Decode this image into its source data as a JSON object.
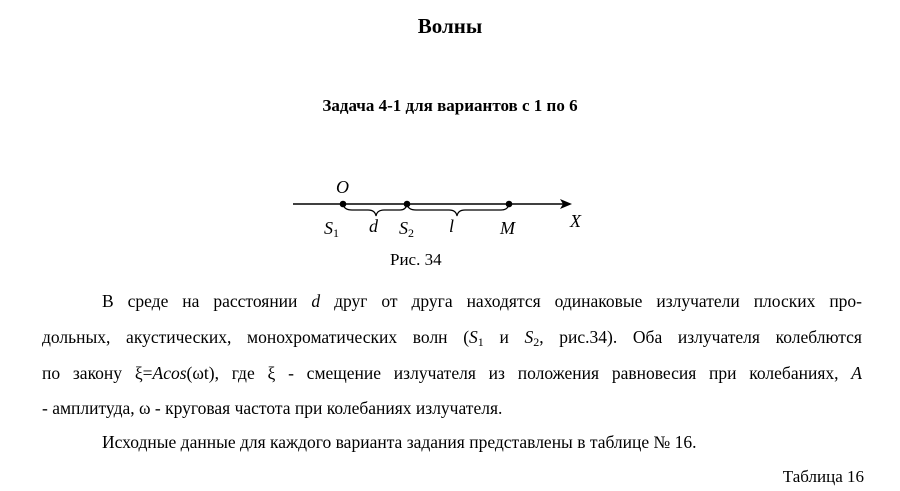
{
  "title": "Волны",
  "subtitle": "Задача 4-1 для вариантов с 1 по 6",
  "figure": {
    "caption": "Рис. 34",
    "labels": {
      "O": "O",
      "S1": "S",
      "S1_sub": "1",
      "d": "d",
      "S2": "S",
      "S2_sub": "2",
      "l": "l",
      "M": "M",
      "X": "X"
    }
  },
  "text": {
    "l1a": "В среде на расстоянии ",
    "l1b": "d",
    "l1c": " друг от друга находятся одинаковые излучатели плоских про-",
    "l2a": "дольных, акустических, монохроматических волн (",
    "l2b": "S",
    "l2c": "1",
    "l2d": " и ",
    "l2e": "S",
    "l2f": "2",
    "l2g": ", рис.34). Оба излучателя колеблются",
    "l3a": "по закону ξ=",
    "l3b": "Acos",
    "l3c": "(ωt), где ξ - смещение излучателя из положения равновесия при колебаниях, ",
    "l3d": "A",
    "l4": "- амплитуда, ω - круговая частота при колебаниях излучателя.",
    "l5": "Исходные данные для каждого варианта задания представлены в таблице № 16."
  },
  "table_label": "Таблица 16"
}
